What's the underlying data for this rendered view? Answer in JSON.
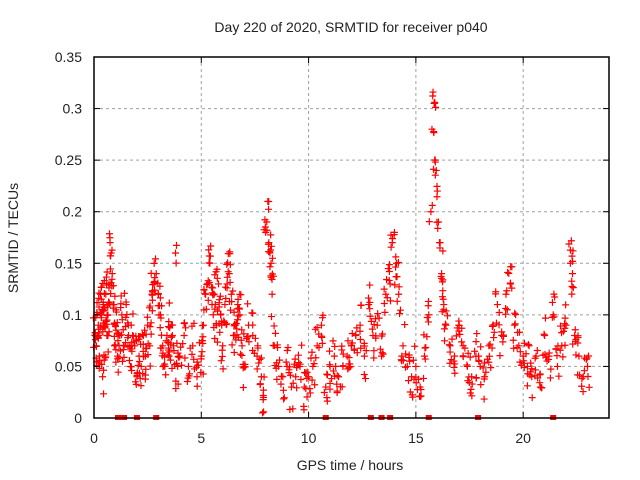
{
  "chart_data": {
    "type": "scatter",
    "title": "Day 220 of 2020, SRMTID for receiver p040",
    "xlabel": "GPS time / hours",
    "ylabel": "SRMTID / TECUs",
    "xlim": [
      0,
      24
    ],
    "ylim": [
      0,
      0.35
    ],
    "xticks": [
      0,
      5,
      10,
      15,
      20
    ],
    "xtick_labels": [
      "0",
      "5",
      "10",
      "15",
      "20"
    ],
    "yticks": [
      0,
      0.05,
      0.1,
      0.15,
      0.2,
      0.25,
      0.3,
      0.35
    ],
    "ytick_labels": [
      "0",
      "0.05",
      "0.1",
      "0.15",
      "0.2",
      "0.25",
      "0.3",
      "0.35"
    ],
    "grid": true,
    "legend": "none",
    "marker": "+",
    "series_color": "#ff0000",
    "series": [
      {
        "name": "SRMTID",
        "points": [
          [
            0.05,
            0.08
          ],
          [
            0.1,
            0.07
          ],
          [
            0.15,
            0.1
          ],
          [
            0.2,
            0.09
          ],
          [
            0.25,
            0.06
          ],
          [
            0.3,
            0.12
          ],
          [
            0.35,
            0.1
          ],
          [
            0.4,
            0.04
          ],
          [
            0.45,
            0.11
          ],
          [
            0.5,
            0.09
          ],
          [
            0.55,
            0.12
          ],
          [
            0.6,
            0.08
          ],
          [
            0.65,
            0.1
          ],
          [
            0.7,
            0.13
          ],
          [
            0.75,
            0.17
          ],
          [
            0.8,
            0.16
          ],
          [
            0.85,
            0.14
          ],
          [
            0.9,
            0.11
          ],
          [
            0.95,
            0.07
          ],
          [
            1.0,
            0.09
          ],
          [
            1.1,
            0.06
          ],
          [
            1.2,
            0.08
          ],
          [
            1.3,
            0.1
          ],
          [
            1.4,
            0.07
          ],
          [
            1.5,
            0.11
          ],
          [
            1.6,
            0.09
          ],
          [
            1.7,
            0.05
          ],
          [
            1.8,
            0.08
          ],
          [
            1.9,
            0.07
          ],
          [
            2.0,
            0.04
          ],
          [
            2.1,
            0.06
          ],
          [
            2.2,
            0.05
          ],
          [
            2.3,
            0.08
          ],
          [
            2.4,
            0.06
          ],
          [
            2.5,
            0.09
          ],
          [
            2.6,
            0.07
          ],
          [
            2.7,
            0.12
          ],
          [
            2.8,
            0.13
          ],
          [
            2.9,
            0.14
          ],
          [
            3.0,
            0.12
          ],
          [
            3.1,
            0.1
          ],
          [
            3.2,
            0.07
          ],
          [
            3.3,
            0.05
          ],
          [
            3.4,
            0.08
          ],
          [
            3.5,
            0.06
          ],
          [
            3.6,
            0.09
          ],
          [
            3.7,
            0.07
          ],
          [
            3.8,
            0.16
          ],
          [
            3.9,
            0.05
          ],
          [
            4.0,
            0.06
          ],
          [
            4.2,
            0.08
          ],
          [
            4.4,
            0.05
          ],
          [
            4.6,
            0.07
          ],
          [
            4.8,
            0.04
          ],
          [
            5.0,
            0.06
          ],
          [
            5.1,
            0.09
          ],
          [
            5.2,
            0.12
          ],
          [
            5.3,
            0.13
          ],
          [
            5.4,
            0.15
          ],
          [
            5.5,
            0.11
          ],
          [
            5.6,
            0.12
          ],
          [
            5.7,
            0.09
          ],
          [
            5.8,
            0.13
          ],
          [
            5.9,
            0.1
          ],
          [
            6.0,
            0.07
          ],
          [
            6.1,
            0.11
          ],
          [
            6.2,
            0.13
          ],
          [
            6.3,
            0.14
          ],
          [
            6.4,
            0.12
          ],
          [
            6.5,
            0.08
          ],
          [
            6.6,
            0.09
          ],
          [
            6.7,
            0.11
          ],
          [
            6.8,
            0.1
          ],
          [
            6.9,
            0.07
          ],
          [
            7.0,
            0.05
          ],
          [
            7.2,
            0.09
          ],
          [
            7.4,
            0.08
          ],
          [
            7.6,
            0.06
          ],
          [
            7.8,
            0.04
          ],
          [
            7.9,
            0.02
          ],
          [
            8.0,
            0.18
          ],
          [
            8.05,
            0.19
          ],
          [
            8.1,
            0.21
          ],
          [
            8.15,
            0.17
          ],
          [
            8.2,
            0.16
          ],
          [
            8.25,
            0.15
          ],
          [
            8.3,
            0.12
          ],
          [
            8.4,
            0.07
          ],
          [
            8.6,
            0.05
          ],
          [
            8.8,
            0.04
          ],
          [
            9.0,
            0.05
          ],
          [
            9.2,
            0.03
          ],
          [
            9.4,
            0.04
          ],
          [
            9.6,
            0.05
          ],
          [
            9.8,
            0.03
          ],
          [
            10.0,
            0.04
          ],
          [
            10.2,
            0.05
          ],
          [
            10.4,
            0.07
          ],
          [
            10.6,
            0.09
          ],
          [
            10.8,
            0.03
          ],
          [
            11.0,
            0.05
          ],
          [
            11.2,
            0.06
          ],
          [
            11.4,
            0.04
          ],
          [
            11.6,
            0.05
          ],
          [
            11.8,
            0.06
          ],
          [
            12.0,
            0.07
          ],
          [
            12.2,
            0.08
          ],
          [
            12.4,
            0.09
          ],
          [
            12.6,
            0.06
          ],
          [
            12.8,
            0.11
          ],
          [
            13.0,
            0.08
          ],
          [
            13.2,
            0.09
          ],
          [
            13.4,
            0.06
          ],
          [
            13.6,
            0.12
          ],
          [
            13.8,
            0.13
          ],
          [
            13.9,
            0.17
          ],
          [
            14.0,
            0.18
          ],
          [
            14.1,
            0.15
          ],
          [
            14.2,
            0.12
          ],
          [
            14.4,
            0.07
          ],
          [
            14.6,
            0.05
          ],
          [
            14.8,
            0.04
          ],
          [
            15.0,
            0.05
          ],
          [
            15.2,
            0.03
          ],
          [
            15.4,
            0.06
          ],
          [
            15.6,
            0.1
          ],
          [
            15.7,
            0.2
          ],
          [
            15.75,
            0.28
          ],
          [
            15.8,
            0.316
          ],
          [
            15.85,
            0.305
          ],
          [
            15.9,
            0.25
          ],
          [
            15.95,
            0.24
          ],
          [
            16.0,
            0.22
          ],
          [
            16.05,
            0.19
          ],
          [
            16.1,
            0.17
          ],
          [
            16.2,
            0.14
          ],
          [
            16.3,
            0.11
          ],
          [
            16.4,
            0.09
          ],
          [
            16.6,
            0.07
          ],
          [
            16.8,
            0.06
          ],
          [
            17.0,
            0.09
          ],
          [
            17.2,
            0.07
          ],
          [
            17.4,
            0.05
          ],
          [
            17.6,
            0.04
          ],
          [
            17.8,
            0.06
          ],
          [
            18.0,
            0.05
          ],
          [
            18.2,
            0.04
          ],
          [
            18.4,
            0.07
          ],
          [
            18.6,
            0.09
          ],
          [
            18.8,
            0.11
          ],
          [
            19.0,
            0.08
          ],
          [
            19.2,
            0.12
          ],
          [
            19.4,
            0.13
          ],
          [
            19.6,
            0.09
          ],
          [
            19.8,
            0.07
          ],
          [
            20.0,
            0.06
          ],
          [
            20.2,
            0.05
          ],
          [
            20.4,
            0.04
          ],
          [
            20.6,
            0.06
          ],
          [
            20.8,
            0.03
          ],
          [
            21.0,
            0.08
          ],
          [
            21.2,
            0.06
          ],
          [
            21.4,
            0.1
          ],
          [
            21.6,
            0.05
          ],
          [
            21.8,
            0.07
          ],
          [
            22.0,
            0.09
          ],
          [
            22.2,
            0.15
          ],
          [
            22.3,
            0.14
          ],
          [
            22.4,
            0.08
          ],
          [
            22.6,
            0.06
          ],
          [
            22.8,
            0.04
          ],
          [
            23.0,
            0.05
          ]
        ]
      }
    ],
    "zero_points_hours": [
      1.12,
      1.4,
      2.0,
      2.9,
      10.8,
      12.9,
      13.4,
      13.8,
      15.6,
      17.9,
      21.4
    ]
  }
}
